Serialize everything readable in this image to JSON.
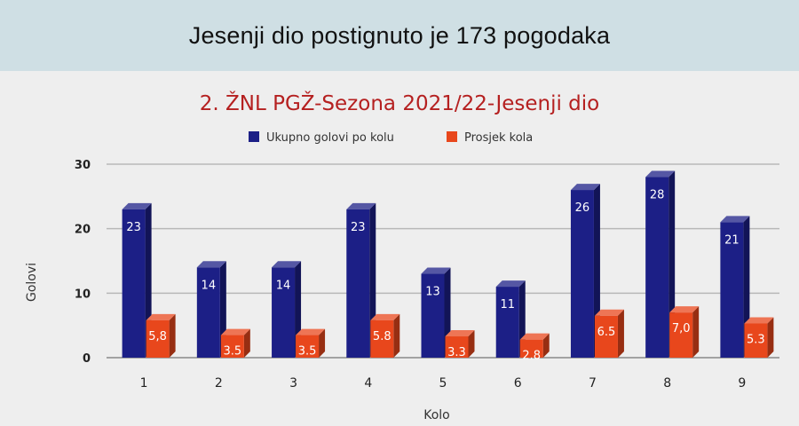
{
  "header": {
    "title": "Jesenji dio postignuto je 173 pogodaka"
  },
  "chart_data": {
    "type": "bar",
    "title": "2. ŽNL PGŽ-Sezona 2021/22-Jesenji dio",
    "xlabel": "Kolo",
    "ylabel": "Golovi",
    "ylim": [
      0,
      30
    ],
    "yticks": [
      "0",
      "10",
      "20",
      "30"
    ],
    "grid": true,
    "legend_position": "top",
    "categories": [
      "1",
      "2",
      "3",
      "4",
      "5",
      "6",
      "7",
      "8",
      "9"
    ],
    "series": [
      {
        "name": "Ukupno golovi po kolu",
        "color": "#1c1f86",
        "values": [
          23,
          14,
          14,
          23,
          13,
          11,
          26,
          28,
          21
        ],
        "labels": [
          "23",
          "14",
          "14",
          "23",
          "13",
          "11",
          "26",
          "28",
          "21"
        ]
      },
      {
        "name": "Prosjek kola",
        "color": "#e8471c",
        "values": [
          5.8,
          3.5,
          3.5,
          5.8,
          3.3,
          2.8,
          6.5,
          7.0,
          5.3
        ],
        "labels": [
          "5,8",
          "3.5",
          "3.5",
          "5.8",
          "3.3",
          "2.8",
          "6.5",
          "7,0",
          "5.3"
        ]
      }
    ]
  }
}
